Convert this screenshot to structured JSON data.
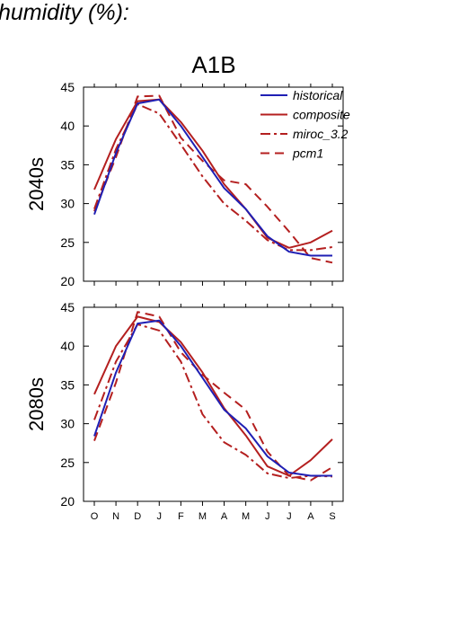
{
  "page": {
    "title": "humidity (%):"
  },
  "colors": {
    "historical": "#1f1fb4",
    "model": "#b41f1f",
    "axis": "#000000"
  },
  "chart_data": {
    "type": "line",
    "title": "A1B",
    "x": [
      "O",
      "N",
      "D",
      "J",
      "F",
      "M",
      "A",
      "M",
      "J",
      "J",
      "A",
      "S"
    ],
    "ylim": [
      20,
      45
    ],
    "yticks": [
      20,
      25,
      30,
      35,
      40,
      45
    ],
    "grid": false,
    "legend_position": "top-right",
    "legend": [
      {
        "name": "historical",
        "color": "#1f1fb4",
        "dash": "solid"
      },
      {
        "name": "composite",
        "color": "#b41f1f",
        "dash": "solid"
      },
      {
        "name": "miroc_3.2",
        "color": "#b41f1f",
        "dash": "dashdot"
      },
      {
        "name": "pcm1",
        "color": "#b41f1f",
        "dash": "dashed"
      }
    ],
    "panels": [
      {
        "label": "2040s",
        "series": [
          {
            "name": "historical",
            "values": [
              28.6,
              36.5,
              42.9,
              43.4,
              40.0,
              36.0,
              32.0,
              29.3,
              25.8,
              23.8,
              23.3,
              23.3
            ]
          },
          {
            "name": "composite",
            "values": [
              31.8,
              38.3,
              43.2,
              43.4,
              40.5,
              36.8,
              32.5,
              29.3,
              25.6,
              24.3,
              25.0,
              26.5
            ]
          },
          {
            "name": "miroc_3.2",
            "values": [
              29.3,
              37.0,
              42.8,
              41.6,
              37.6,
              33.5,
              30.0,
              27.8,
              25.3,
              24.0,
              24.0,
              24.4
            ]
          },
          {
            "name": "pcm1",
            "values": [
              29.0,
              36.0,
              43.8,
              43.9,
              38.5,
              35.5,
              33.0,
              32.5,
              29.6,
              26.4,
              23.0,
              22.4
            ]
          }
        ]
      },
      {
        "label": "2080s",
        "series": [
          {
            "name": "historical",
            "values": [
              28.4,
              36.6,
              42.9,
              43.3,
              40.0,
              35.9,
              31.8,
              29.4,
              25.8,
              23.7,
              23.3,
              23.3
            ]
          },
          {
            "name": "composite",
            "values": [
              33.8,
              40.0,
              43.8,
              43.1,
              40.5,
              36.6,
              32.0,
              28.5,
              24.5,
              23.3,
              25.3,
              28.0
            ]
          },
          {
            "name": "miroc_3.2",
            "values": [
              30.5,
              38.0,
              42.8,
              42.0,
              38.0,
              31.2,
              27.6,
              26.0,
              23.6,
              23.0,
              23.3,
              23.2
            ]
          },
          {
            "name": "pcm1",
            "values": [
              27.8,
              35.3,
              44.4,
              43.8,
              39.2,
              36.3,
              34.0,
              31.8,
              26.4,
              23.3,
              22.7,
              24.4
            ]
          }
        ]
      }
    ]
  }
}
